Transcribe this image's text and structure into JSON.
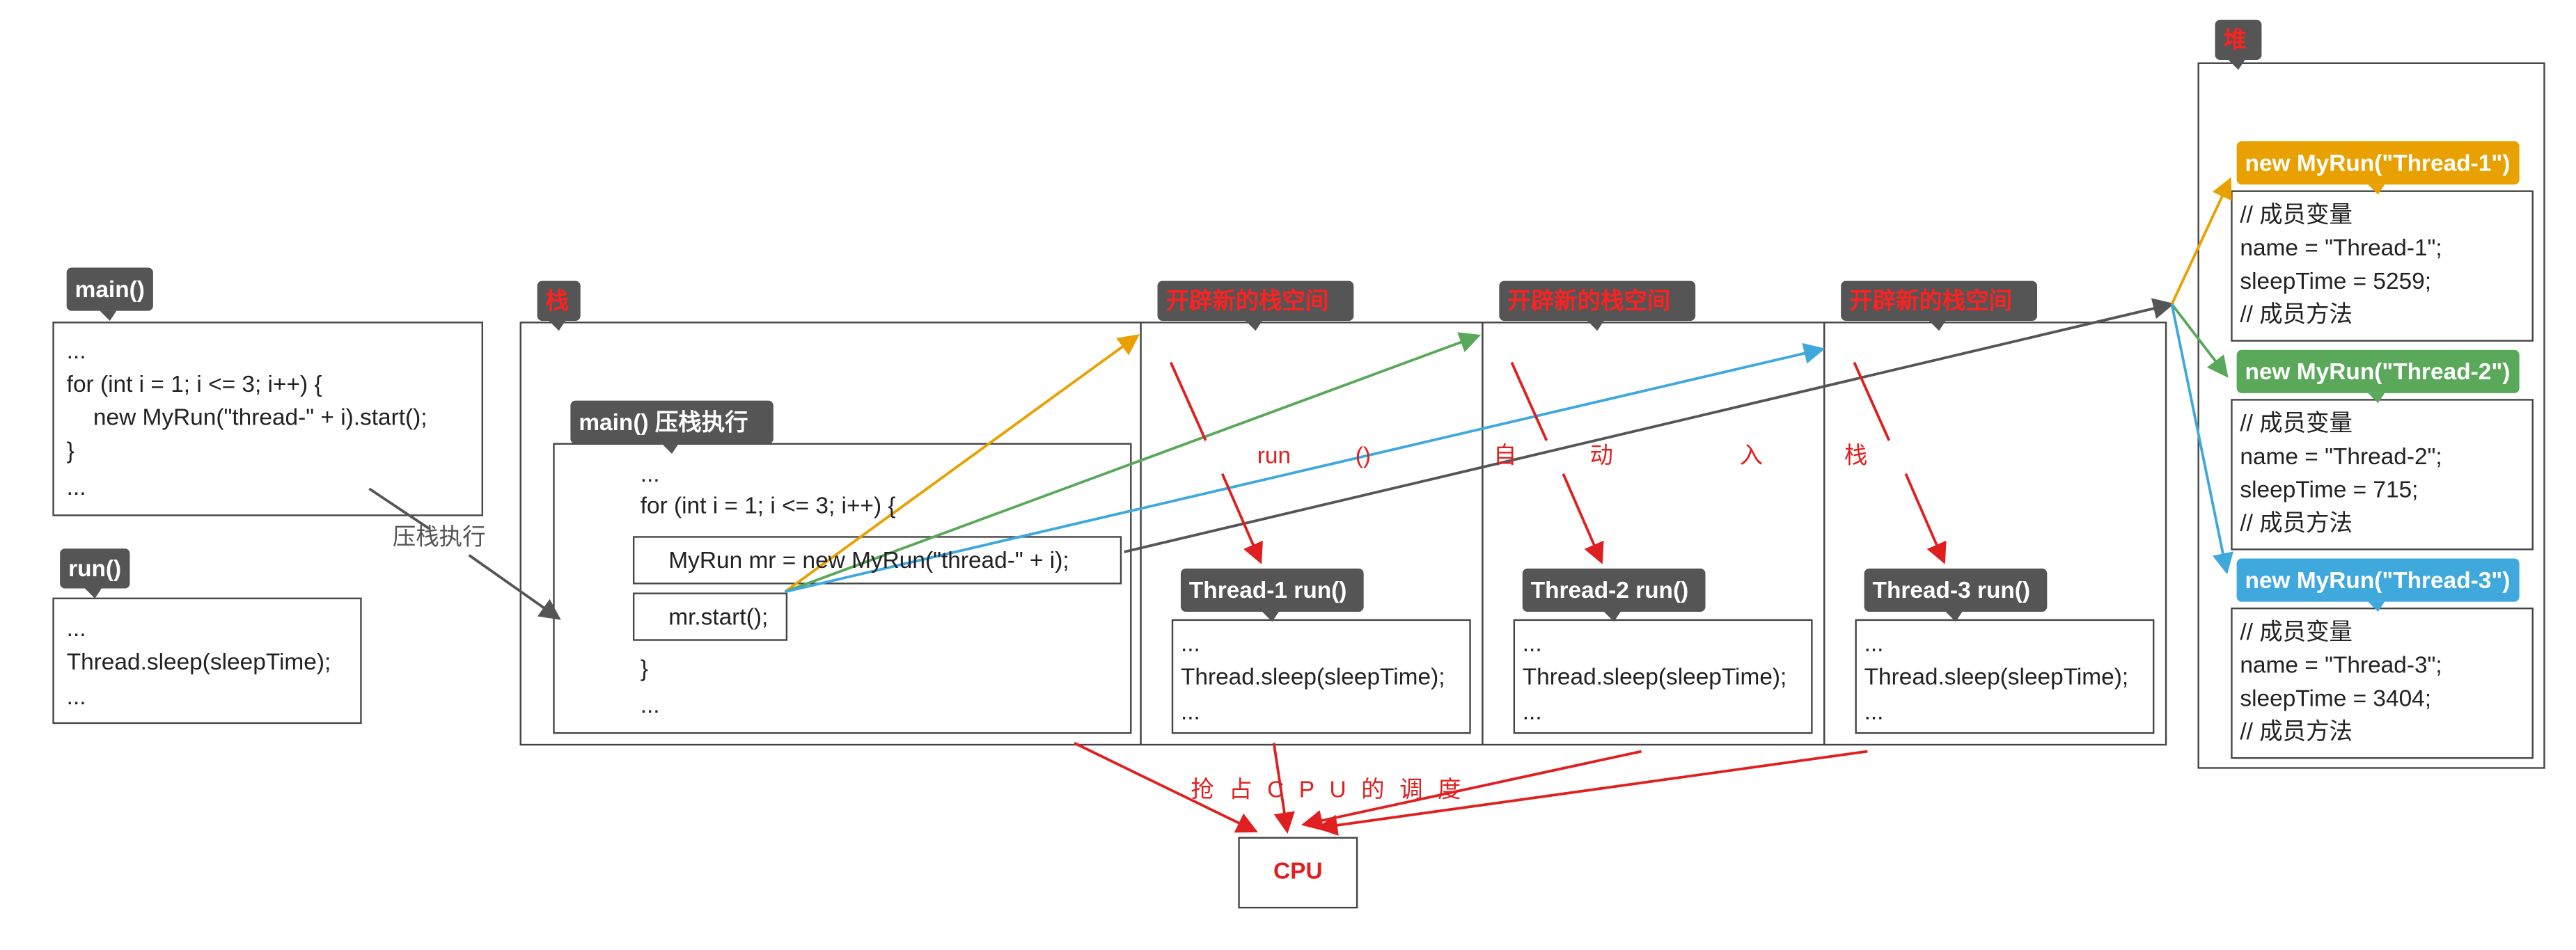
{
  "main_box": {
    "tag": "main()",
    "lines": [
      "...",
      "for (int i = 1; i <= 3; i++) {",
      "new MyRun(\"thread-\" + i).start();",
      "}",
      "..."
    ]
  },
  "run_box": {
    "tag": "run()",
    "lines": [
      "...",
      "Thread.sleep(sleepTime);",
      "..."
    ]
  },
  "push_label": "压栈执行",
  "stack": {
    "tag": "栈",
    "frame": {
      "tag": "main() 压栈执行",
      "lines": [
        "...",
        "for (int i = 1; i <= 3; i++) {",
        "MyRun mr = new MyRun(\"thread-\" + i);",
        "mr.start();",
        "}",
        "..."
      ]
    }
  },
  "threads": [
    {
      "tag": "开辟新的栈空间",
      "frame": "Thread-1 run()",
      "lines": [
        "...",
        "Thread.sleep(sleepTime);",
        "..."
      ]
    },
    {
      "tag": "开辟新的栈空间",
      "frame": "Thread-2 run()",
      "lines": [
        "...",
        "Thread.sleep(sleepTime);",
        "..."
      ]
    },
    {
      "tag": "开辟新的栈空间",
      "frame": "Thread-3 run()",
      "lines": [
        "...",
        "Thread.sleep(sleepTime);",
        "..."
      ]
    }
  ],
  "auto_push": [
    "run",
    "()",
    "自",
    "动",
    "入",
    "栈"
  ],
  "cpu_label": "抢占CPU的调度",
  "cpu": "CPU",
  "heap": {
    "tag": "堆",
    "objects": [
      {
        "tag": "new MyRun(\"Thread-1\")",
        "color": "#e8a100",
        "lines": [
          "// 成员变量",
          "name = \"Thread-1\";",
          "sleepTime = 5259;",
          "// 成员方法"
        ]
      },
      {
        "tag": "new MyRun(\"Thread-2\")",
        "color": "#5aa85a",
        "lines": [
          "// 成员变量",
          "name = \"Thread-2\";",
          "sleepTime = 715;",
          "// 成员方法"
        ]
      },
      {
        "tag": "new MyRun(\"Thread-3\")",
        "color": "#3fa8dc",
        "lines": [
          "// 成员变量",
          "name = \"Thread-3\";",
          "sleepTime = 3404;",
          "// 成员方法"
        ]
      }
    ]
  }
}
